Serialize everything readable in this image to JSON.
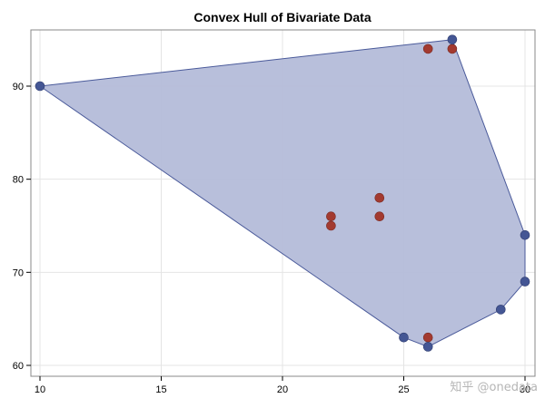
{
  "chart_data": {
    "type": "scatter",
    "title": "Convex Hull of Bivariate Data",
    "xlabel": "",
    "ylabel": "",
    "xlim": [
      10,
      30
    ],
    "ylim": [
      60,
      95
    ],
    "xticks": [
      10,
      15,
      20,
      25,
      30
    ],
    "yticks": [
      60,
      70,
      80,
      90
    ],
    "grid": true,
    "colors": {
      "hull_fill": "#b4bcd9",
      "hull_stroke": "#4a5a9a",
      "hull_point": "#445694",
      "interior_point": "#a33a30",
      "grid": "#e4e4e4",
      "frame": "#888888"
    },
    "hull_vertices": [
      {
        "x": 10,
        "y": 90
      },
      {
        "x": 27,
        "y": 95
      },
      {
        "x": 30,
        "y": 74
      },
      {
        "x": 30,
        "y": 69
      },
      {
        "x": 29,
        "y": 66
      },
      {
        "x": 26,
        "y": 62
      },
      {
        "x": 25,
        "y": 63
      }
    ],
    "interior_points": [
      {
        "x": 26,
        "y": 94
      },
      {
        "x": 27,
        "y": 94
      },
      {
        "x": 22,
        "y": 76
      },
      {
        "x": 22,
        "y": 75
      },
      {
        "x": 24,
        "y": 78
      },
      {
        "x": 24,
        "y": 76
      },
      {
        "x": 26,
        "y": 63
      }
    ],
    "watermark": "知乎 @onedata"
  }
}
